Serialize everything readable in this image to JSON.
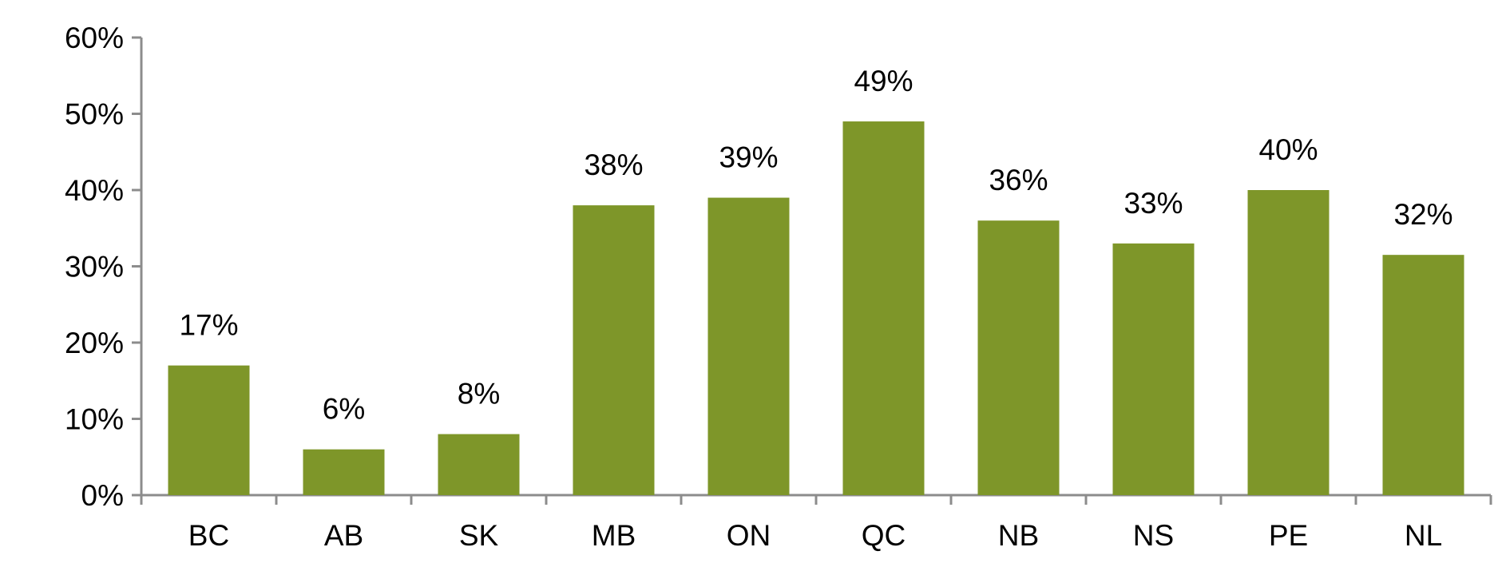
{
  "chart_data": {
    "type": "bar",
    "categories": [
      "BC",
      "AB",
      "SK",
      "MB",
      "ON",
      "QC",
      "NB",
      "NS",
      "PE",
      "NL"
    ],
    "values": [
      17,
      6,
      8,
      38,
      39,
      49,
      36,
      33,
      40,
      31.5
    ],
    "data_labels": [
      "17%",
      "6%",
      "8%",
      "38%",
      "39%",
      "49%",
      "36%",
      "33%",
      "40%",
      "32%"
    ],
    "y_tick_values": [
      0,
      10,
      20,
      30,
      40,
      50,
      60
    ],
    "y_tick_labels": [
      "0%",
      "10%",
      "20%",
      "30%",
      "40%",
      "50%",
      "60%"
    ],
    "ylim": [
      0,
      60
    ],
    "title": "",
    "xlabel": "",
    "ylabel": "",
    "grid": false,
    "legend": "none",
    "colors": {
      "bar": "#7e9629",
      "axis": "#8c8c8c",
      "text": "#000000"
    }
  }
}
